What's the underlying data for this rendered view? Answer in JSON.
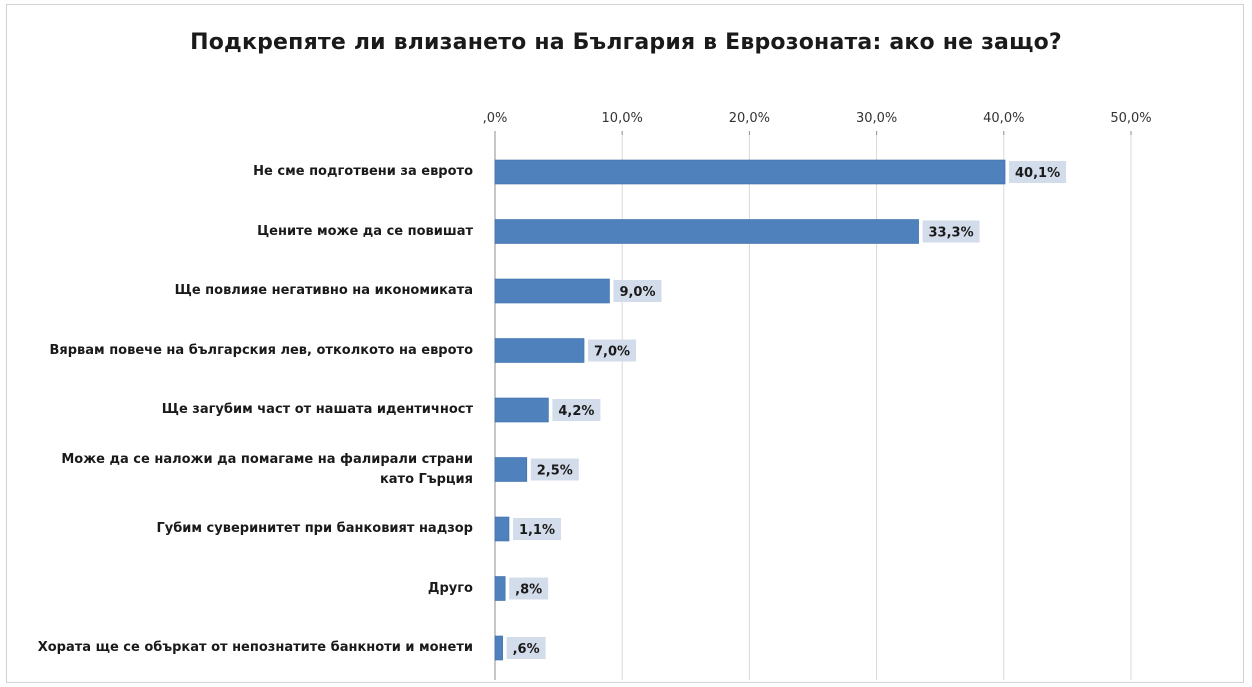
{
  "chart_data": {
    "type": "bar",
    "orientation": "horizontal",
    "title": "Подкрепяте ли влизането на България в Еврозоната: ако не защо?",
    "categories": [
      "Не сме подготвени за еврото",
      "Цените може да се повишат",
      "Ще повлияе негативно на икономиката",
      "Вярвам повече на българския лев, отколкото на еврото",
      "Ще загубим част от нашата идентичност",
      "Може да се наложи да помагаме на фалирали страни като Гърция",
      "Губим суверинитет при банковият надзор",
      "Друго",
      "Хората ще се объркат от непознатите банкноти и монети"
    ],
    "values": [
      40.1,
      33.3,
      9.0,
      7.0,
      4.2,
      2.5,
      1.1,
      0.8,
      0.6
    ],
    "value_labels": [
      "40,1%",
      "33,3%",
      "9,0%",
      "7,0%",
      "4,2%",
      "2,5%",
      "1,1%",
      ",8%",
      ",6%"
    ],
    "x_ticks": [
      0,
      10,
      20,
      30,
      40,
      50
    ],
    "x_tick_labels": [
      ",0%",
      "10,0%",
      "20,0%",
      "30,0%",
      "40,0%",
      "50,0%"
    ],
    "xlim": [
      0,
      50
    ],
    "x_axis_position": "top",
    "grid": true,
    "colors": {
      "bar": "#4f81bd",
      "bar_border": "#3c6ea8",
      "label_bg": "#d3dcea",
      "grid": "#d9d9d9"
    }
  }
}
